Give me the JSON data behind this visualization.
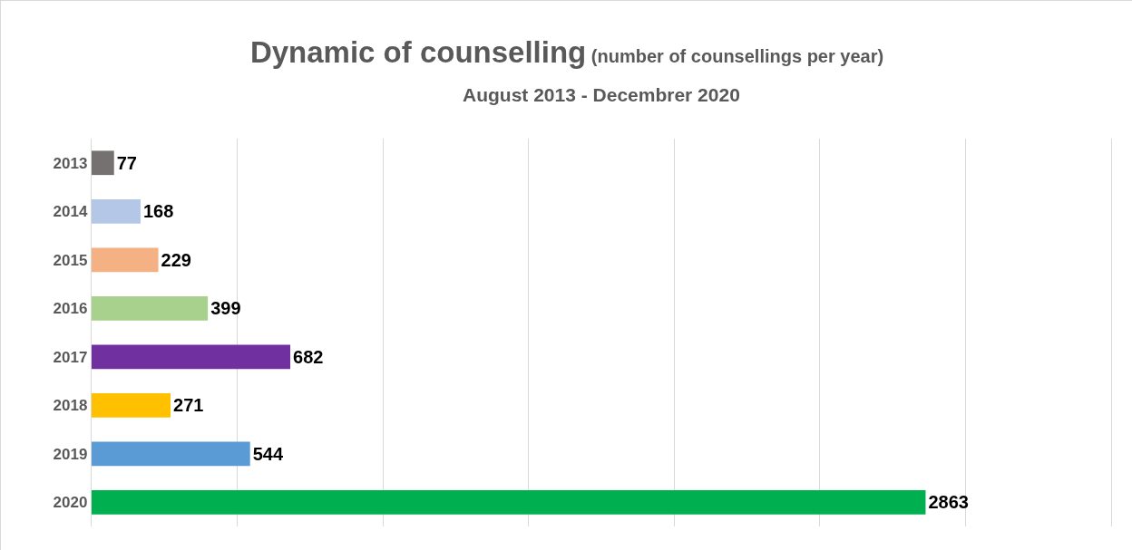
{
  "chart_data": {
    "type": "bar",
    "orientation": "horizontal",
    "title": "Dynamic of counselling (number of counsellings per year)",
    "subtitle": "August 2013 - Decembrer 2020",
    "categories": [
      "2013",
      "2014",
      "2015",
      "2016",
      "2017",
      "2018",
      "2019",
      "2020"
    ],
    "values": [
      77,
      168,
      229,
      399,
      682,
      271,
      544,
      2863
    ],
    "colors": [
      "#767171",
      "#b4c7e7",
      "#f4b183",
      "#a9d18e",
      "#7030a0",
      "#ffc000",
      "#5b9bd5",
      "#00b050"
    ],
    "xlim": [
      0,
      3500
    ],
    "xticks": [
      {
        "value": 0,
        "label": null
      },
      {
        "value": 500,
        "label": null
      },
      {
        "value": 1000,
        "label": null
      },
      {
        "value": 1500,
        "label": null
      },
      {
        "value": 2000,
        "label": null
      },
      {
        "value": 2500,
        "label": null
      },
      {
        "value": 3000,
        "label": null
      },
      {
        "value": 3500,
        "label": null
      }
    ],
    "tick_labels": "y",
    "grid": "x",
    "data_labels": true,
    "legend": false
  }
}
